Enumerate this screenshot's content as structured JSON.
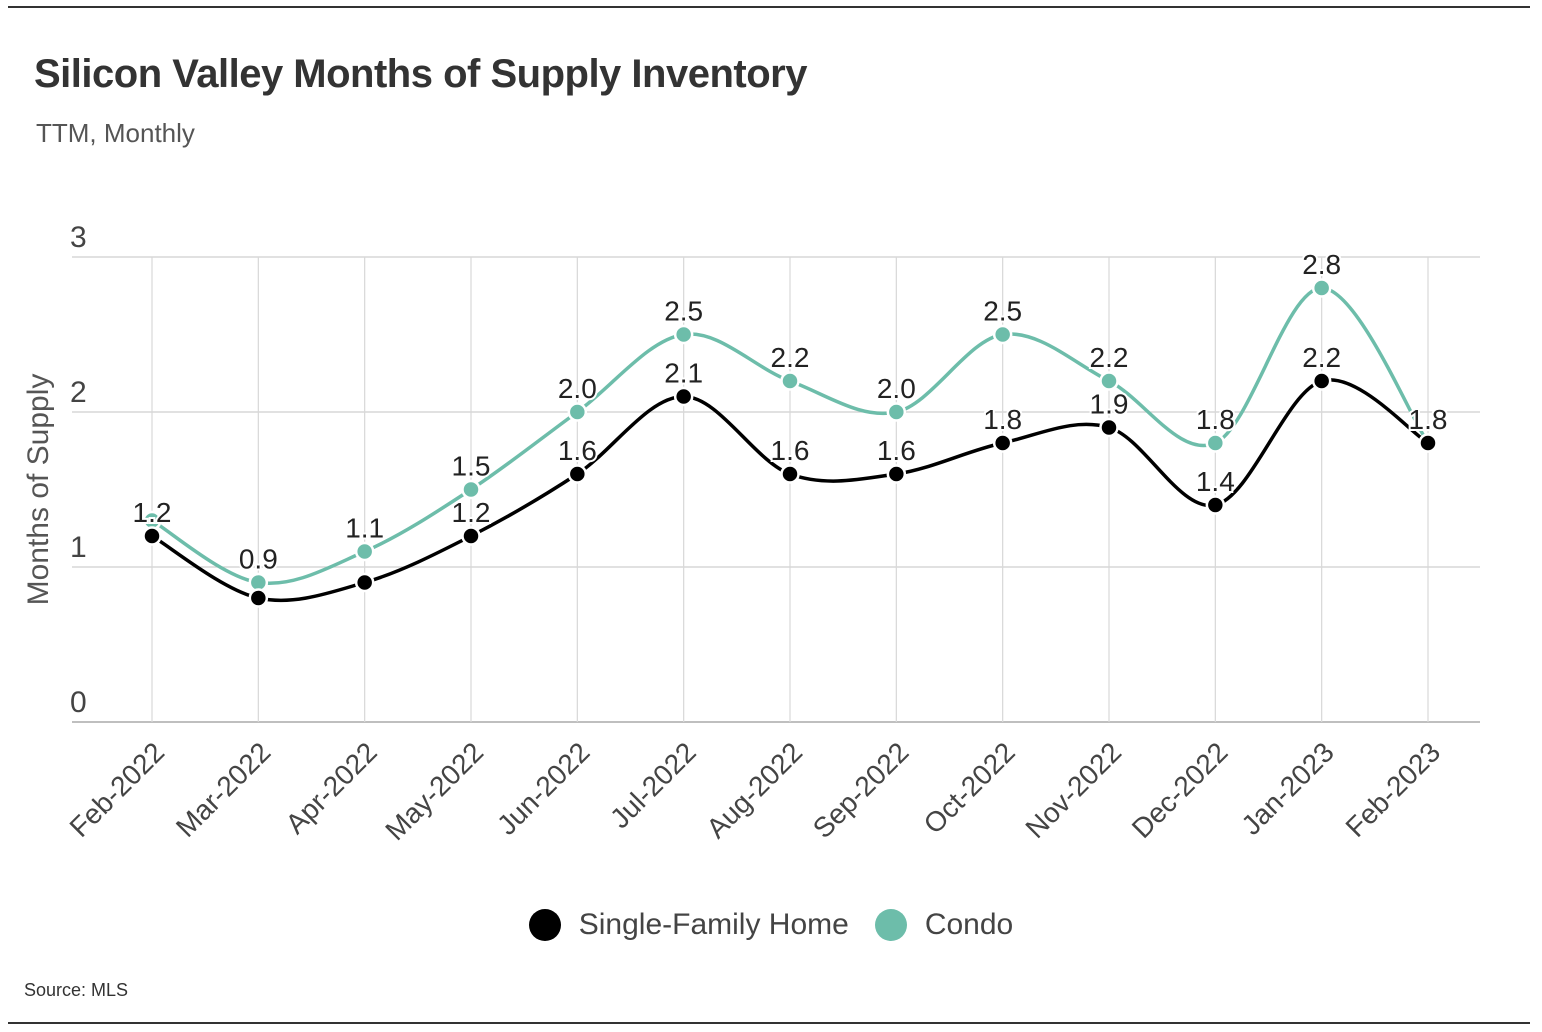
{
  "title": "Silicon Valley Months of Supply Inventory",
  "subtitle": "TTM, Monthly",
  "source": "Source:  MLS",
  "chart_data": {
    "type": "line",
    "title": "Silicon Valley Months of Supply Inventory",
    "subtitle": "TTM, Monthly",
    "xlabel": "",
    "ylabel": "Months of Supply",
    "ylim": [
      0,
      3
    ],
    "yticks": [
      "0",
      "1",
      "2",
      "3"
    ],
    "grid": true,
    "legend_position": "bottom",
    "categories": [
      "Feb-2022",
      "Mar-2022",
      "Apr-2022",
      "May-2022",
      "Jun-2022",
      "Jul-2022",
      "Aug-2022",
      "Sep-2022",
      "Oct-2022",
      "Nov-2022",
      "Dec-2022",
      "Jan-2023",
      "Feb-2023"
    ],
    "series": [
      {
        "name": "Single-Family Home",
        "color": "#000000",
        "values": [
          1.2,
          0.8,
          0.9,
          1.2,
          1.6,
          2.1,
          1.6,
          1.6,
          1.8,
          1.9,
          1.4,
          2.2,
          1.8
        ],
        "labels": [
          "1.2",
          "",
          "",
          "1.2",
          "1.6",
          "2.1",
          "1.6",
          "1.6",
          "1.8",
          "1.9",
          "1.4",
          "2.2",
          ""
        ]
      },
      {
        "name": "Condo",
        "color": "#6dbdaa",
        "values": [
          1.3,
          0.9,
          1.1,
          1.5,
          2.0,
          2.5,
          2.2,
          2.0,
          2.5,
          2.2,
          1.8,
          2.8,
          1.8
        ],
        "labels": [
          "",
          "0.9",
          "1.1",
          "1.5",
          "2.0",
          "2.5",
          "2.2",
          "2.0",
          "2.5",
          "2.2",
          "1.8",
          "2.8",
          "1.8"
        ]
      }
    ]
  }
}
